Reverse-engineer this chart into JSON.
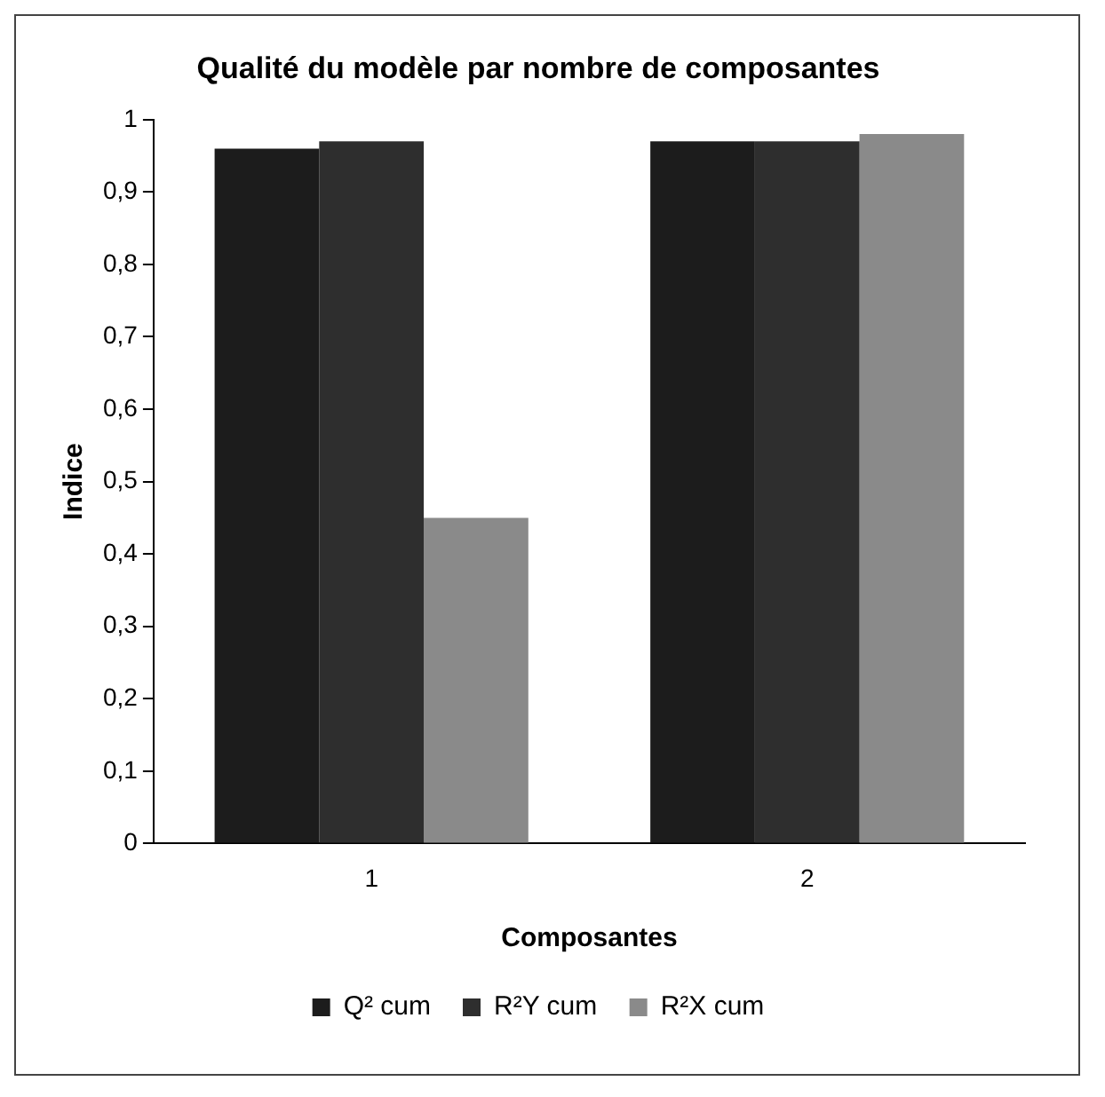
{
  "chart_data": {
    "type": "bar",
    "title": "Qualité du modèle par nombre de composantes",
    "xlabel": "Composantes",
    "ylabel": "Indice",
    "categories": [
      "1",
      "2"
    ],
    "series": [
      {
        "name": "Q² cum",
        "color": "#1c1c1c",
        "values": [
          0.96,
          0.97
        ]
      },
      {
        "name": "R²Y cum",
        "color": "#2e2e2e",
        "values": [
          0.97,
          0.97
        ]
      },
      {
        "name": "R²X cum",
        "color": "#8a8a8a",
        "values": [
          0.45,
          0.98
        ]
      }
    ],
    "ylim": [
      0,
      1
    ],
    "yticks": [
      {
        "value": 0,
        "label": "0"
      },
      {
        "value": 0.1,
        "label": "0,1"
      },
      {
        "value": 0.2,
        "label": "0,2"
      },
      {
        "value": 0.3,
        "label": "0,3"
      },
      {
        "value": 0.4,
        "label": "0,4"
      },
      {
        "value": 0.5,
        "label": "0,5"
      },
      {
        "value": 0.6,
        "label": "0,6"
      },
      {
        "value": 0.7,
        "label": "0,7"
      },
      {
        "value": 0.8,
        "label": "0,8"
      },
      {
        "value": 0.9,
        "label": "0,9"
      },
      {
        "value": 1,
        "label": "1"
      }
    ],
    "legend": "bottom"
  }
}
